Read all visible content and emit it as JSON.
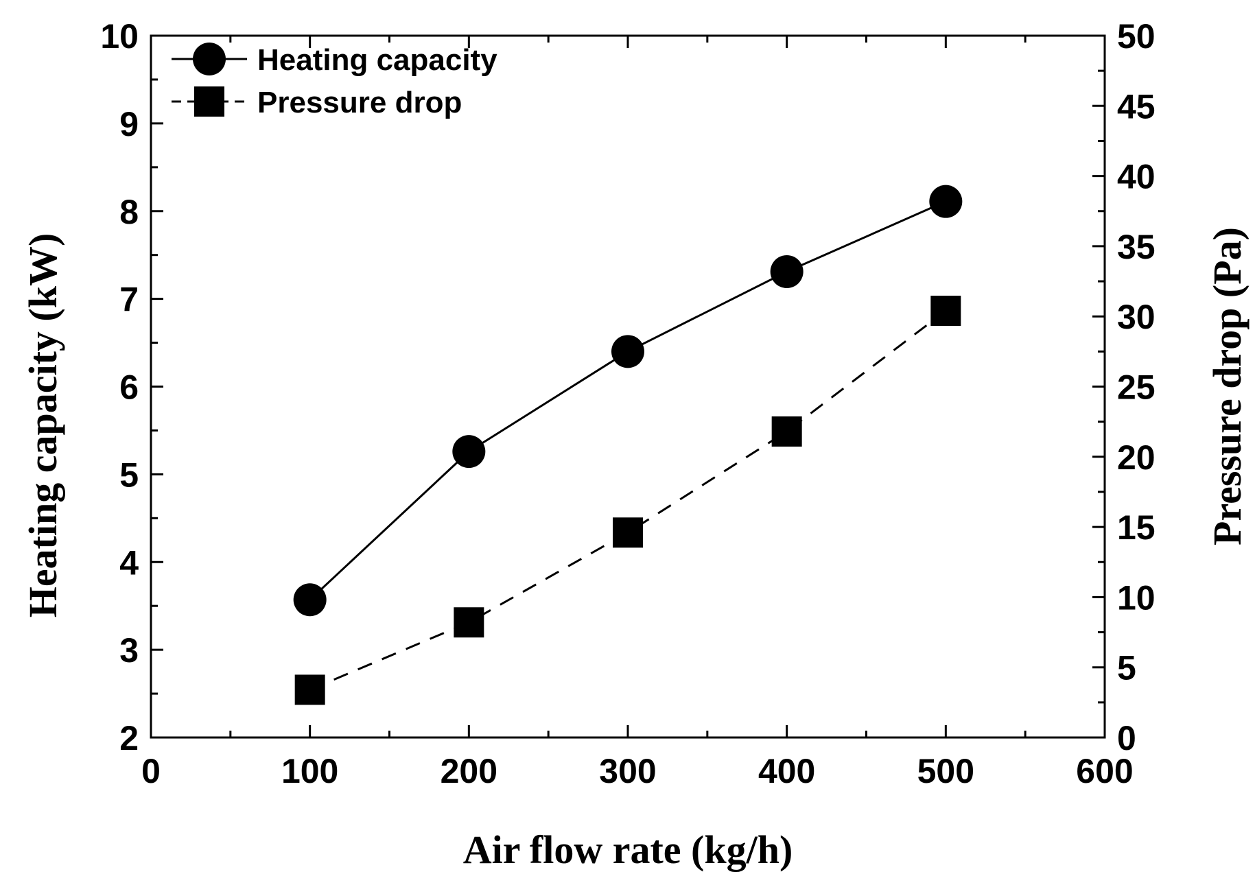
{
  "chart_data": {
    "type": "line",
    "title": "",
    "xlabel": "Air flow rate (kg/h)",
    "ylabel_left": "Heating capacity (kW)",
    "ylabel_right": "Pressure drop (Pa)",
    "xlim": [
      0,
      600
    ],
    "ylim_left": [
      2,
      10
    ],
    "ylim_right": [
      0,
      50
    ],
    "x_ticks": [
      "0",
      "100",
      "200",
      "300",
      "400",
      "500",
      "600"
    ],
    "y_left_ticks": [
      "2",
      "3",
      "4",
      "5",
      "6",
      "7",
      "8",
      "9",
      "10"
    ],
    "y_right_ticks": [
      "0",
      "5",
      "10",
      "15",
      "20",
      "25",
      "30",
      "35",
      "40",
      "45",
      "50"
    ],
    "grid": false,
    "legend_position": "top-left",
    "series": [
      {
        "name": "Heating capacity",
        "axis": "left",
        "marker": "circle",
        "line_style": "solid",
        "x": [
          100,
          200,
          300,
          400,
          500
        ],
        "values": [
          3.57,
          5.26,
          6.4,
          7.31,
          8.11
        ]
      },
      {
        "name": "Pressure drop",
        "axis": "right",
        "marker": "square",
        "line_style": "dashed",
        "x": [
          100,
          200,
          300,
          400,
          500
        ],
        "values": [
          3.4,
          8.2,
          14.6,
          21.8,
          30.4
        ]
      }
    ]
  }
}
